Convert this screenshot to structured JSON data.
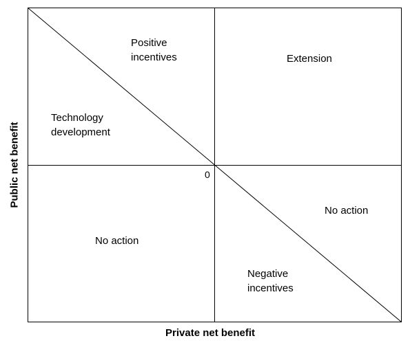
{
  "diagram": {
    "x_axis_label": "Private net benefit",
    "y_axis_label": "Public net benefit",
    "origin_label": "0",
    "regions": {
      "positive_incentives": [
        "Positive",
        "incentives"
      ],
      "extension": [
        "Extension"
      ],
      "technology_development": [
        "Technology",
        "development"
      ],
      "no_action_right": [
        "No action"
      ],
      "no_action_left": [
        "No action"
      ],
      "negative_incentives": [
        "Negative",
        "incentives"
      ]
    },
    "colors": {
      "line": "#000000",
      "background": "#ffffff"
    }
  }
}
